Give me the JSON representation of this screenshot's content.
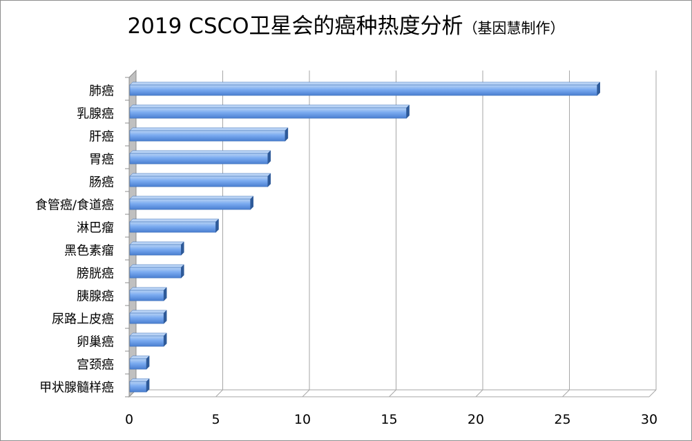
{
  "title": {
    "main": "2019 CSCO卫星会的癌种热度分析",
    "sub": "（基因慧制作）"
  },
  "colors": {
    "bar_light": "#b9d3f5",
    "bar_mid": "#7aaaf0",
    "bar_dark": "#4a7fd0",
    "bar_edge": "#3d6fb8",
    "bar_cap": "#2e5a99",
    "grid": "#a6a6a6",
    "wall": "#c0c0c0"
  },
  "chart_data": {
    "type": "bar",
    "orientation": "horizontal",
    "style": "3d",
    "categories": [
      "肺癌",
      "乳腺癌",
      "肝癌",
      "胃癌",
      "肠癌",
      "食管癌/食道癌",
      "淋巴瘤",
      "黑色素瘤",
      "膀胱癌",
      "胰腺癌",
      "尿路上皮癌",
      "卵巢癌",
      "宫颈癌",
      "甲状腺髓样癌"
    ],
    "values": [
      27,
      16,
      9,
      8,
      8,
      7,
      5,
      3,
      3,
      2,
      2,
      2,
      1,
      1
    ],
    "xlim": [
      0,
      30
    ],
    "xticks": [
      "0",
      "5",
      "10",
      "15",
      "20",
      "25",
      "30"
    ],
    "grid": true,
    "legend": "none"
  }
}
